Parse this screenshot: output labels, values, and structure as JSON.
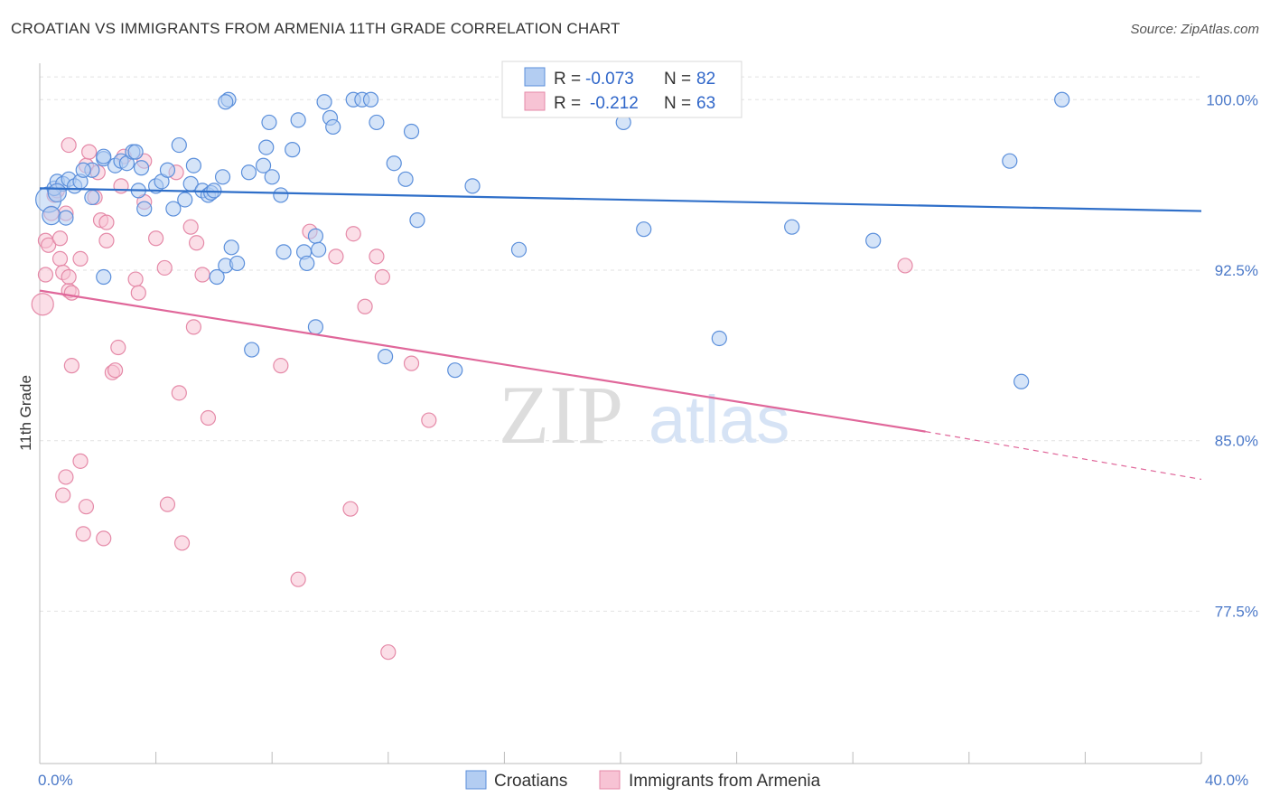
{
  "title": "CROATIAN VS IMMIGRANTS FROM ARMENIA 11TH GRADE CORRELATION CHART",
  "source": "Source: ZipAtlas.com",
  "watermark": {
    "zip": "ZIP",
    "atlas": "atlas"
  },
  "colors": {
    "blue_fill": "#b3cdf2",
    "blue_stroke": "#5b8fdb",
    "blue_line": "#2f6fc9",
    "pink_fill": "#f7c3d4",
    "pink_stroke": "#e58aa8",
    "pink_line": "#e0679a",
    "axis_text": "#4a78c8",
    "grid": "#e2e2e2"
  },
  "legend": {
    "rows": [
      {
        "r_label": "R =",
        "r_value": "-0.073",
        "n_label": "N =",
        "n_value": "82"
      },
      {
        "r_label": "R =",
        "r_value": "-0.212",
        "n_label": "N =",
        "n_value": "63"
      }
    ]
  },
  "chart_data": {
    "type": "scatter",
    "title": "CROATIAN VS IMMIGRANTS FROM ARMENIA 11TH GRADE CORRELATION CHART",
    "xlabel": "",
    "ylabel": "11th Grade",
    "xlim": [
      0,
      40
    ],
    "ylim": [
      70.8,
      101.6
    ],
    "x_tick_labels": [
      "0.0%",
      "40.0%"
    ],
    "y_ticks": [
      100.0,
      92.5,
      85.0,
      77.5
    ],
    "y_tick_labels": [
      "100.0%",
      "92.5%",
      "85.0%",
      "77.5%"
    ],
    "legend_placement": "top-center",
    "series": [
      {
        "name": "Croatians",
        "trend": {
          "x": [
            0,
            40
          ],
          "y": [
            96.1,
            95.1
          ]
        },
        "points": [
          [
            0.3,
            95.6
          ],
          [
            0.5,
            96.1
          ],
          [
            0.6,
            96.4
          ],
          [
            0.8,
            96.3
          ],
          [
            1.0,
            96.5
          ],
          [
            1.2,
            96.2
          ],
          [
            1.4,
            96.4
          ],
          [
            0.4,
            94.9
          ],
          [
            0.6,
            95.9
          ],
          [
            0.9,
            94.8
          ],
          [
            1.8,
            95.7
          ],
          [
            1.8,
            96.9
          ],
          [
            2.2,
            97.4
          ],
          [
            2.2,
            97.5
          ],
          [
            2.6,
            97.1
          ],
          [
            2.8,
            97.3
          ],
          [
            3.0,
            97.2
          ],
          [
            3.2,
            97.7
          ],
          [
            3.5,
            97.0
          ],
          [
            3.4,
            96.0
          ],
          [
            3.6,
            95.2
          ],
          [
            4.0,
            96.2
          ],
          [
            4.2,
            96.4
          ],
          [
            4.4,
            96.9
          ],
          [
            4.6,
            95.2
          ],
          [
            4.8,
            98.0
          ],
          [
            5.0,
            95.6
          ],
          [
            5.2,
            96.3
          ],
          [
            5.3,
            97.1
          ],
          [
            5.6,
            96.0
          ],
          [
            5.8,
            95.8
          ],
          [
            5.9,
            95.9
          ],
          [
            6.0,
            96.0
          ],
          [
            6.3,
            96.6
          ],
          [
            6.6,
            93.5
          ],
          [
            6.4,
            92.7
          ],
          [
            6.8,
            92.8
          ],
          [
            7.2,
            96.8
          ],
          [
            7.7,
            97.1
          ],
          [
            7.8,
            97.9
          ],
          [
            7.9,
            99.0
          ],
          [
            8.0,
            96.6
          ],
          [
            8.3,
            95.8
          ],
          [
            8.4,
            93.3
          ],
          [
            8.7,
            97.8
          ],
          [
            8.9,
            99.1
          ],
          [
            9.1,
            93.3
          ],
          [
            9.2,
            92.8
          ],
          [
            9.5,
            94.0
          ],
          [
            9.6,
            93.4
          ],
          [
            9.5,
            90.0
          ],
          [
            9.8,
            99.9
          ],
          [
            10.0,
            99.2
          ],
          [
            10.1,
            98.8
          ],
          [
            10.8,
            100.0
          ],
          [
            11.1,
            100.0
          ],
          [
            11.4,
            100.0
          ],
          [
            11.6,
            99.0
          ],
          [
            11.9,
            88.7
          ],
          [
            12.2,
            97.2
          ],
          [
            12.6,
            96.5
          ],
          [
            12.8,
            98.6
          ],
          [
            13.0,
            94.7
          ],
          [
            14.3,
            88.1
          ],
          [
            14.9,
            96.2
          ],
          [
            16.5,
            93.4
          ],
          [
            3.3,
            97.7
          ],
          [
            6.5,
            100.0
          ],
          [
            6.1,
            92.2
          ],
          [
            6.4,
            99.9
          ],
          [
            20.8,
            94.3
          ],
          [
            23.4,
            89.5
          ],
          [
            25.9,
            94.4
          ],
          [
            28.7,
            93.8
          ],
          [
            33.4,
            97.3
          ],
          [
            35.2,
            100.0
          ],
          [
            33.8,
            87.6
          ],
          [
            20.1,
            99.0
          ],
          [
            20.4,
            100.0
          ],
          [
            2.2,
            92.2
          ],
          [
            7.3,
            89.0
          ],
          [
            1.5,
            96.9
          ]
        ],
        "radii": [
          14,
          8,
          8,
          8,
          8,
          8,
          8,
          10,
          10,
          8,
          8,
          8,
          8,
          8,
          8,
          8,
          8,
          8,
          8,
          8,
          8,
          8,
          8,
          8,
          8,
          8,
          8,
          8,
          8,
          8,
          8,
          8,
          8,
          8,
          8,
          8,
          8,
          8,
          8,
          8,
          8,
          8,
          8,
          8,
          8,
          8,
          8,
          8,
          8,
          8,
          8,
          8,
          8,
          8,
          8,
          8,
          8,
          8,
          8,
          8,
          8,
          8,
          8,
          8,
          8,
          8,
          8,
          8,
          8,
          8,
          8,
          8,
          8,
          8,
          8,
          8,
          8,
          8,
          8,
          8,
          8,
          8
        ]
      },
      {
        "name": "Immigrants from Armenia",
        "trend": {
          "x": [
            0,
            30.5
          ],
          "y": [
            91.6,
            85.4
          ]
        },
        "trend_dashed": {
          "x": [
            30.5,
            40
          ],
          "y": [
            85.4,
            83.3
          ]
        },
        "points": [
          [
            0.1,
            91.0
          ],
          [
            0.2,
            92.3
          ],
          [
            0.2,
            93.8
          ],
          [
            0.3,
            93.6
          ],
          [
            0.4,
            95.0
          ],
          [
            0.5,
            95.8
          ],
          [
            0.6,
            96.0
          ],
          [
            0.7,
            93.9
          ],
          [
            0.7,
            93.0
          ],
          [
            0.9,
            95.0
          ],
          [
            0.8,
            92.4
          ],
          [
            1.0,
            91.6
          ],
          [
            1.1,
            91.5
          ],
          [
            1.0,
            92.2
          ],
          [
            1.4,
            93.0
          ],
          [
            1.6,
            97.1
          ],
          [
            1.7,
            97.7
          ],
          [
            1.9,
            95.7
          ],
          [
            2.0,
            96.8
          ],
          [
            2.1,
            94.7
          ],
          [
            2.3,
            94.6
          ],
          [
            2.3,
            93.8
          ],
          [
            2.5,
            88.0
          ],
          [
            2.6,
            88.1
          ],
          [
            2.7,
            89.1
          ],
          [
            2.8,
            96.2
          ],
          [
            2.9,
            97.5
          ],
          [
            3.3,
            92.1
          ],
          [
            3.4,
            91.5
          ],
          [
            3.6,
            95.5
          ],
          [
            3.6,
            97.3
          ],
          [
            4.0,
            93.9
          ],
          [
            4.3,
            92.6
          ],
          [
            4.7,
            96.8
          ],
          [
            4.8,
            87.1
          ],
          [
            5.2,
            94.4
          ],
          [
            5.3,
            90.0
          ],
          [
            5.4,
            93.7
          ],
          [
            5.6,
            92.3
          ],
          [
            5.8,
            86.0
          ],
          [
            8.3,
            88.3
          ],
          [
            8.9,
            78.9
          ],
          [
            9.3,
            94.2
          ],
          [
            10.2,
            93.1
          ],
          [
            10.8,
            94.1
          ],
          [
            11.2,
            90.9
          ],
          [
            11.6,
            93.1
          ],
          [
            11.8,
            92.2
          ],
          [
            12.0,
            75.7
          ],
          [
            12.8,
            88.4
          ],
          [
            13.4,
            85.9
          ],
          [
            1.0,
            98.0
          ],
          [
            1.1,
            88.3
          ],
          [
            1.4,
            84.1
          ],
          [
            1.6,
            82.1
          ],
          [
            2.2,
            80.7
          ],
          [
            0.9,
            83.4
          ],
          [
            0.8,
            82.6
          ],
          [
            1.5,
            80.9
          ],
          [
            4.4,
            82.2
          ],
          [
            4.9,
            80.5
          ],
          [
            10.7,
            82.0
          ],
          [
            29.8,
            92.7
          ]
        ],
        "radii": [
          12,
          8,
          8,
          8,
          8,
          8,
          8,
          8,
          8,
          8,
          8,
          8,
          8,
          8,
          8,
          8,
          8,
          8,
          8,
          8,
          8,
          8,
          8,
          8,
          8,
          8,
          8,
          8,
          8,
          8,
          8,
          8,
          8,
          8,
          8,
          8,
          8,
          8,
          8,
          8,
          8,
          8,
          8,
          8,
          8,
          8,
          8,
          8,
          8,
          8,
          8,
          8,
          8,
          8,
          8,
          8,
          8,
          8,
          8,
          8,
          8,
          8,
          8
        ]
      }
    ]
  }
}
